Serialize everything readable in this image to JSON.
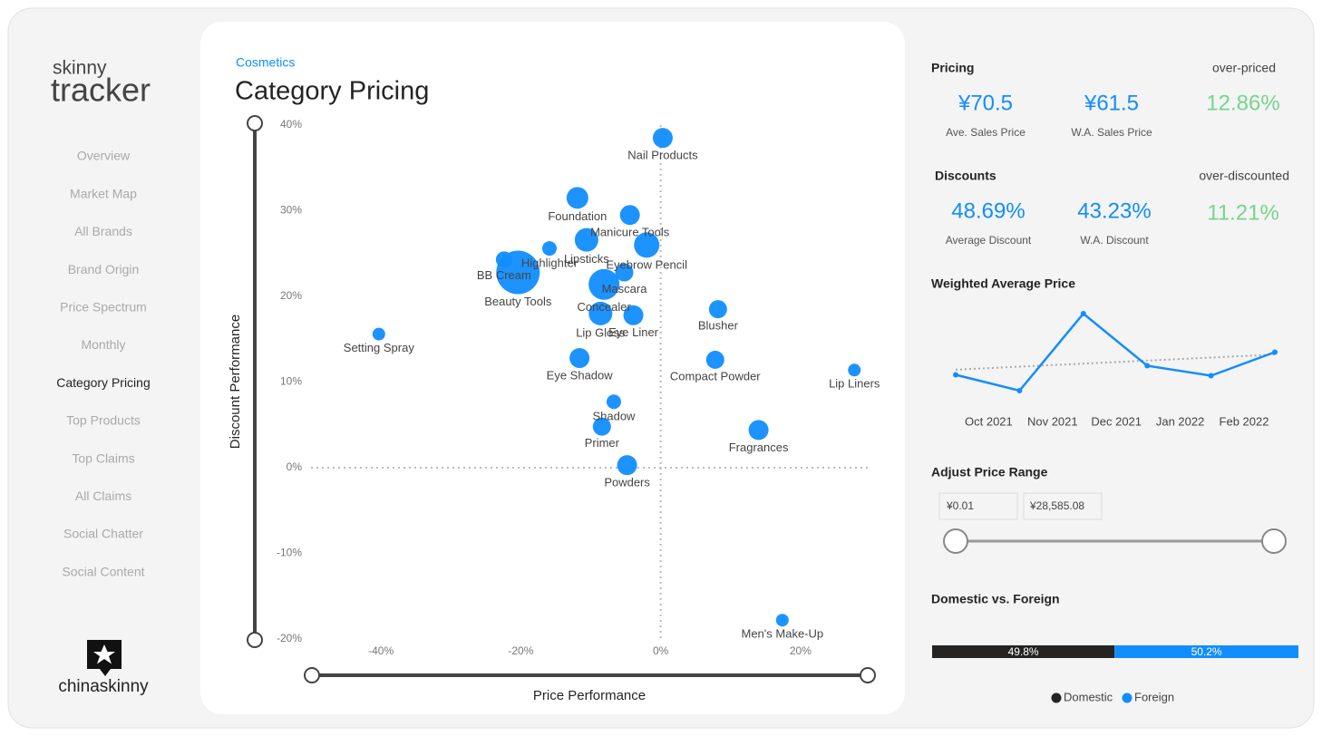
{
  "brand": {
    "line1": "skinny",
    "line2": "tracker",
    "footer": "chinaskinny"
  },
  "nav": [
    "Overview",
    "Market Map",
    "All Brands",
    "Brand Origin",
    "Price Spectrum",
    "Monthly",
    "Category Pricing",
    "Top Products",
    "Top Claims",
    "All Claims",
    "Social Chatter",
    "Social Content"
  ],
  "nav_active": 6,
  "kpis": {
    "pricing": {
      "title": "Pricing",
      "note": "over-priced",
      "items": [
        {
          "value": "¥70.5",
          "label": "Ave. Sales Price"
        },
        {
          "value": "¥61.5",
          "label": "W.A. Sales Price"
        }
      ],
      "delta": "12.86%"
    },
    "discounts": {
      "title": "Discounts",
      "note": "over-discounted",
      "items": [
        {
          "value": "48.69%",
          "label": "Average Discount"
        },
        {
          "value": "43.23%",
          "label": "W.A. Discount"
        }
      ],
      "delta": "11.21%"
    }
  },
  "price_range": {
    "title": "Adjust Price Range",
    "min": "¥0.01",
    "max": "¥28,585.08"
  },
  "chart_data": [
    {
      "type": "scatter",
      "subtitle": "Cosmetics",
      "title": "Category Pricing",
      "xlabel": "Price Performance",
      "ylabel": "Discount Performance",
      "color": "#118dff",
      "labels": [
        "Nail Products",
        "Foundation",
        "Manicure Tools",
        "Lipsticks",
        "Highlighter",
        "BB Cream",
        "Beauty Tools",
        "Eyebrow Pencil",
        "Concealer",
        "Mascara",
        "Lip Gloss",
        "Eye Liner",
        "Blusher",
        "Setting Spray",
        "Eye Shadow",
        "Compact Powder",
        "Lip Liners",
        "Shadow",
        "Primer",
        "Fragrances",
        "Powders",
        "Men's Make-Up"
      ],
      "x": [
        0.3,
        -11.9,
        -4.4,
        -10.6,
        -15.9,
        -22.4,
        -20.4,
        -2.0,
        -8.1,
        -5.2,
        -8.6,
        -3.9,
        8.2,
        -40.3,
        -11.6,
        7.8,
        27.7,
        -6.7,
        -8.4,
        14.0,
        -4.8,
        17.4
      ],
      "values": [
        38.5,
        31.5,
        29.5,
        26.6,
        25.6,
        24.3,
        22.8,
        26.0,
        21.4,
        22.8,
        18.0,
        17.8,
        18.5,
        15.6,
        12.8,
        12.6,
        11.4,
        7.7,
        4.8,
        4.4,
        0.3,
        -17.8
      ],
      "sizes": [
        121,
        144,
        121,
        169,
        64,
        81,
        576,
        196,
        289,
        100,
        169,
        121,
        100,
        49,
        121,
        100,
        49,
        64,
        100,
        121,
        121,
        49
      ],
      "xlim": [
        -50,
        30
      ],
      "xticks": [
        {
          "value": -40,
          "label": "-40%"
        },
        {
          "value": -20,
          "label": "-20%"
        },
        {
          "value": 0,
          "label": "0%"
        },
        {
          "value": 20,
          "label": "20%"
        }
      ],
      "ylim": [
        -20,
        40
      ],
      "yticks": [
        {
          "value": -20,
          "label": "-20%"
        },
        {
          "value": -10,
          "label": "-10%"
        },
        {
          "value": 0,
          "label": "0%"
        },
        {
          "value": 10,
          "label": "10%"
        },
        {
          "value": 20,
          "label": "20%"
        },
        {
          "value": 30,
          "label": "30%"
        },
        {
          "value": 40,
          "label": "40%"
        }
      ]
    },
    {
      "type": "line",
      "title": "Weighted Average Price",
      "color": "#118dff",
      "trendline": true,
      "categories": [
        null,
        "Oct 2021",
        "Nov 2021",
        "Dec 2021",
        "Jan 2022",
        "Feb 2022"
      ],
      "values": [
        58.5,
        55.0,
        72.0,
        60.5,
        58.3,
        63.5
      ]
    },
    {
      "type": "bar",
      "title": "Domestic vs. Foreign",
      "stacked": true,
      "orientation": "horizontal",
      "series": [
        {
          "name": "Domestic",
          "color": "#252423",
          "values": [
            49.8
          ],
          "value_labels": [
            "49.8%"
          ]
        },
        {
          "name": "Foreign",
          "color": "#118dff",
          "values": [
            50.2
          ],
          "value_labels": [
            "50.2%"
          ]
        }
      ]
    }
  ]
}
